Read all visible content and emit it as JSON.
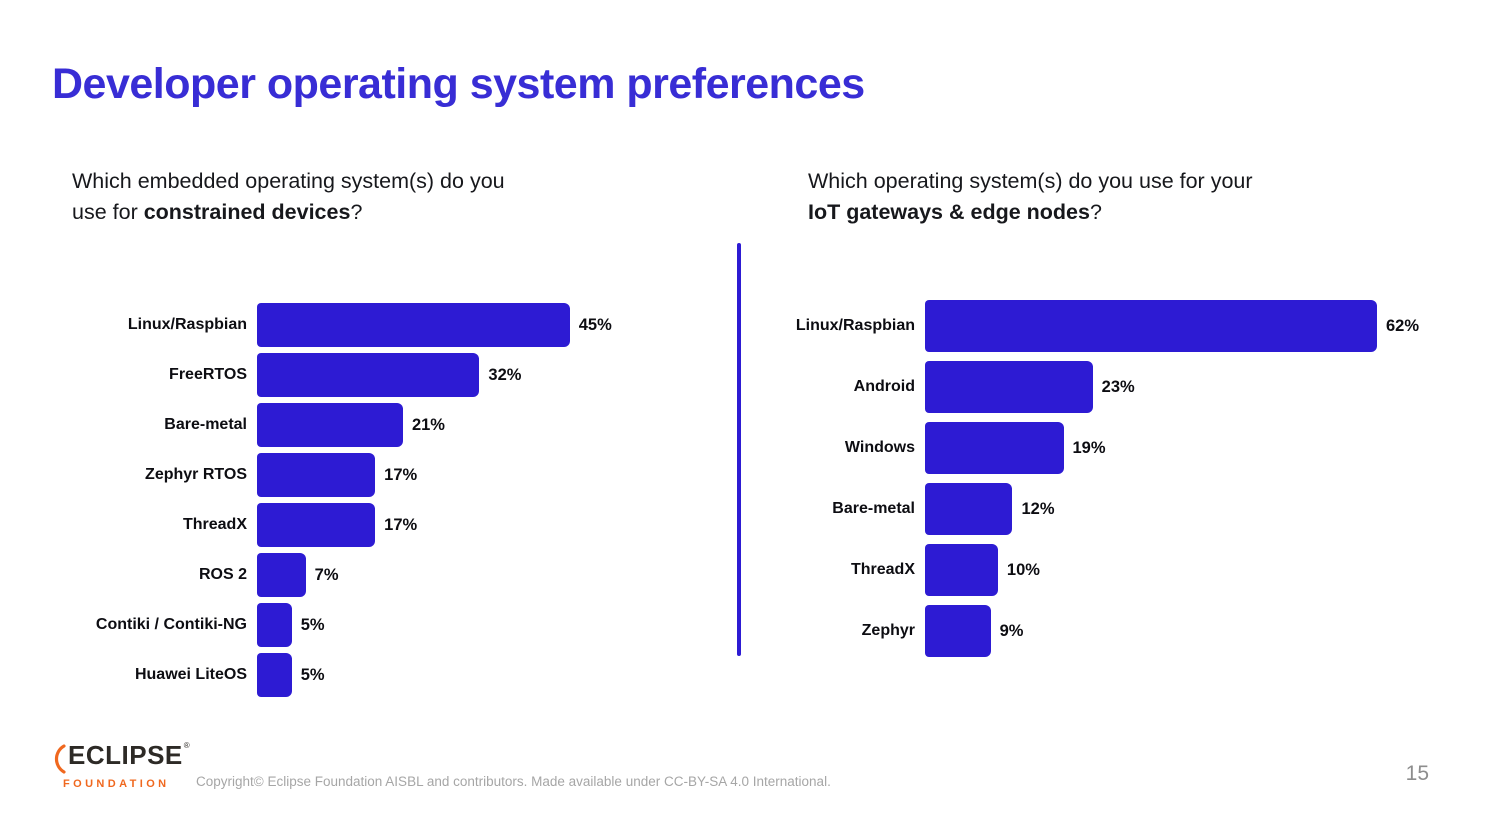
{
  "header": {
    "title": "Developer operating system preferences"
  },
  "colors": {
    "background": "#ffffff",
    "accent_blue": "#382dd5",
    "bar_blue": "#2d1bd3",
    "text_dark": "#17181c",
    "logo_orange": "#f0681f",
    "logo_dark": "#2d2a26",
    "gray_muted": "#a6a6a6"
  },
  "questions": {
    "left": {
      "line1": "Which embedded operating system(s) do you",
      "line2_prefix": "use for ",
      "line2_bold": "constrained devices",
      "line2_suffix": "?"
    },
    "right": {
      "line1": "Which operating system(s) do you use for your",
      "line2_prefix": "",
      "line2_bold": "IoT gateways & edge nodes",
      "line2_suffix": "?"
    }
  },
  "chart_data": [
    {
      "type": "bar",
      "orientation": "horizontal",
      "title": "Which embedded operating system(s) do you use for constrained devices?",
      "categories": [
        "Linux/Raspbian",
        "FreeRTOS",
        "Bare-metal",
        "Zephyr RTOS",
        "ThreadX",
        "ROS 2",
        "Contiki / Contiki-NG",
        "Huawei LiteOS"
      ],
      "values": [
        45,
        32,
        21,
        17,
        17,
        7,
        5,
        5
      ],
      "unit": "%",
      "xlim": [
        0,
        65
      ],
      "grid": false,
      "legend": "none",
      "bar_color": "#2d1bd3",
      "value_labels": [
        "45%",
        "32%",
        "21%",
        "17%",
        "17%",
        "7%",
        "5%",
        "5%"
      ]
    },
    {
      "type": "bar",
      "orientation": "horizontal",
      "title": "Which operating system(s) do you use for your IoT gateways & edge nodes?",
      "categories": [
        "Linux/Raspbian",
        "Android",
        "Windows",
        "Bare-metal",
        "ThreadX",
        "Zephyr"
      ],
      "values": [
        62,
        23,
        19,
        12,
        10,
        9
      ],
      "unit": "%",
      "xlim": [
        0,
        70
      ],
      "grid": false,
      "legend": "none",
      "bar_color": "#2d1bd3",
      "value_labels": [
        "62%",
        "23%",
        "19%",
        "12%",
        "10%",
        "9%"
      ]
    }
  ],
  "footer": {
    "logo": {
      "line1": "ECLIPSE",
      "registered": "®",
      "line2": "FOUNDATION"
    },
    "copyright": "Copyright© Eclipse Foundation AISBL and contributors. Made available under CC-BY-SA 4.0 International.",
    "page_number": "15"
  }
}
